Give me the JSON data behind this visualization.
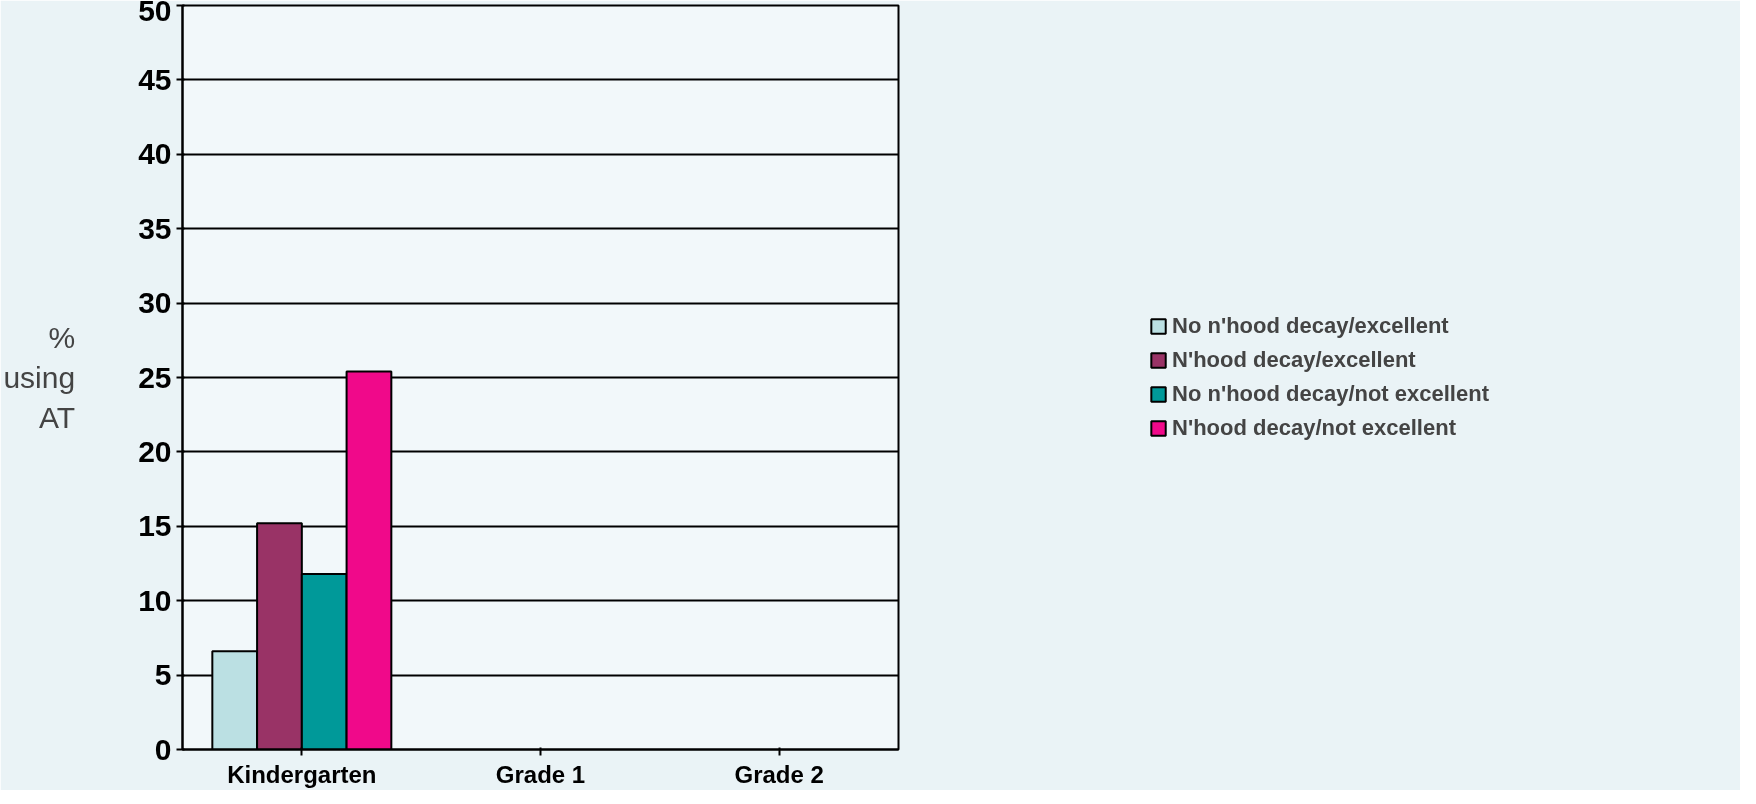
{
  "chart_data": {
    "type": "bar",
    "ylabel": "% using AT",
    "categories": [
      "Kindergarten",
      "Grade 1",
      "Grade 2"
    ],
    "series": [
      {
        "name": "No n'hood decay/excellent",
        "color": "#bbe0e3",
        "values": [
          6.6,
          null,
          null
        ]
      },
      {
        "name": "N'hood decay/excellent",
        "color": "#993366",
        "values": [
          15.2,
          null,
          null
        ]
      },
      {
        "name": "No n'hood decay/not excellent",
        "color": "#009999",
        "values": [
          11.8,
          null,
          null
        ]
      },
      {
        "name": "N'hood decay/not excellent",
        "color": "#f0098a",
        "values": [
          25.4,
          null,
          null
        ]
      }
    ],
    "ylim": [
      0,
      50
    ],
    "yticks": [
      0,
      5,
      10,
      15,
      20,
      25,
      30,
      35,
      40,
      45,
      50
    ],
    "grid": "y",
    "legend": "right"
  }
}
